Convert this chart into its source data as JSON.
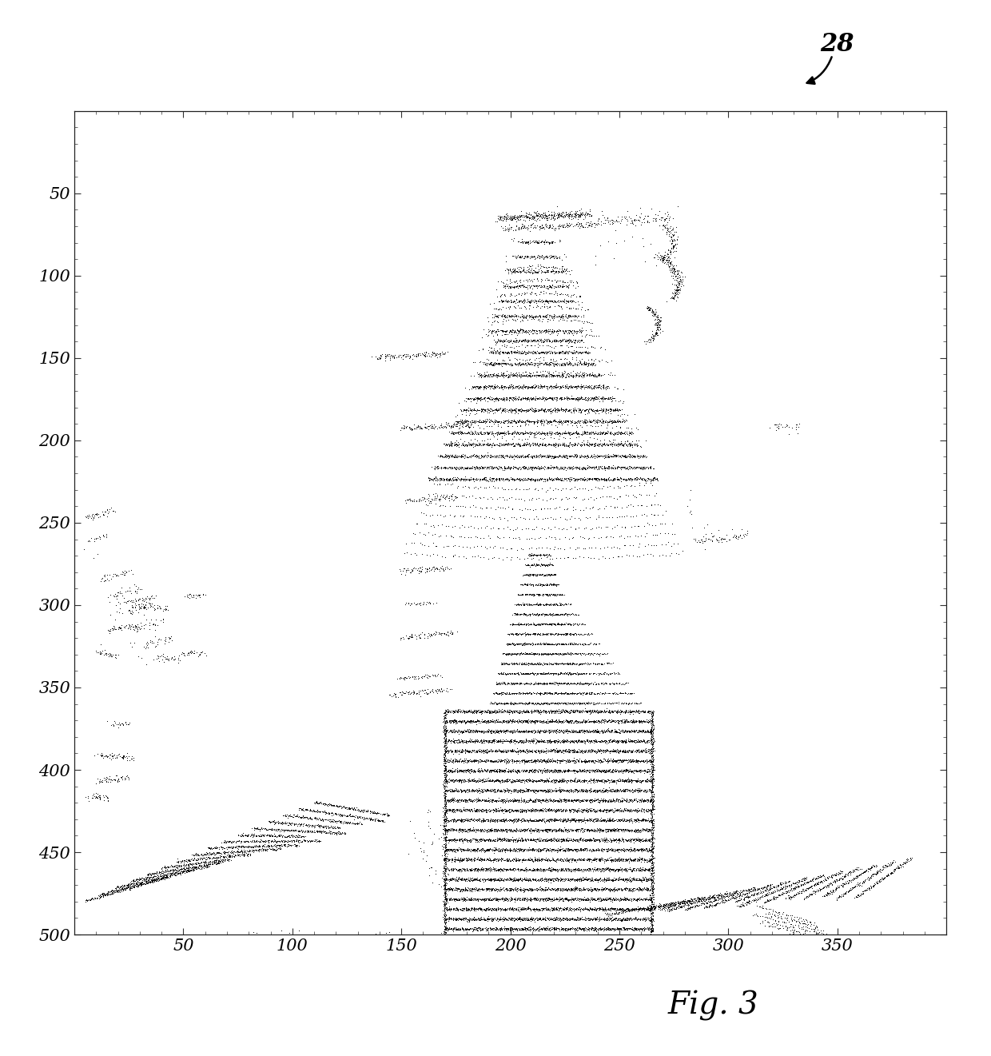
{
  "xlim": [
    0,
    400
  ],
  "ylim": [
    0,
    500
  ],
  "xticks": [
    50,
    100,
    150,
    200,
    250,
    300,
    350
  ],
  "yticks": [
    50,
    100,
    150,
    200,
    250,
    300,
    350,
    400,
    450,
    500
  ],
  "point_color": "#111111",
  "point_size": 1.5,
  "background_color": "#ffffff",
  "seed": 42
}
